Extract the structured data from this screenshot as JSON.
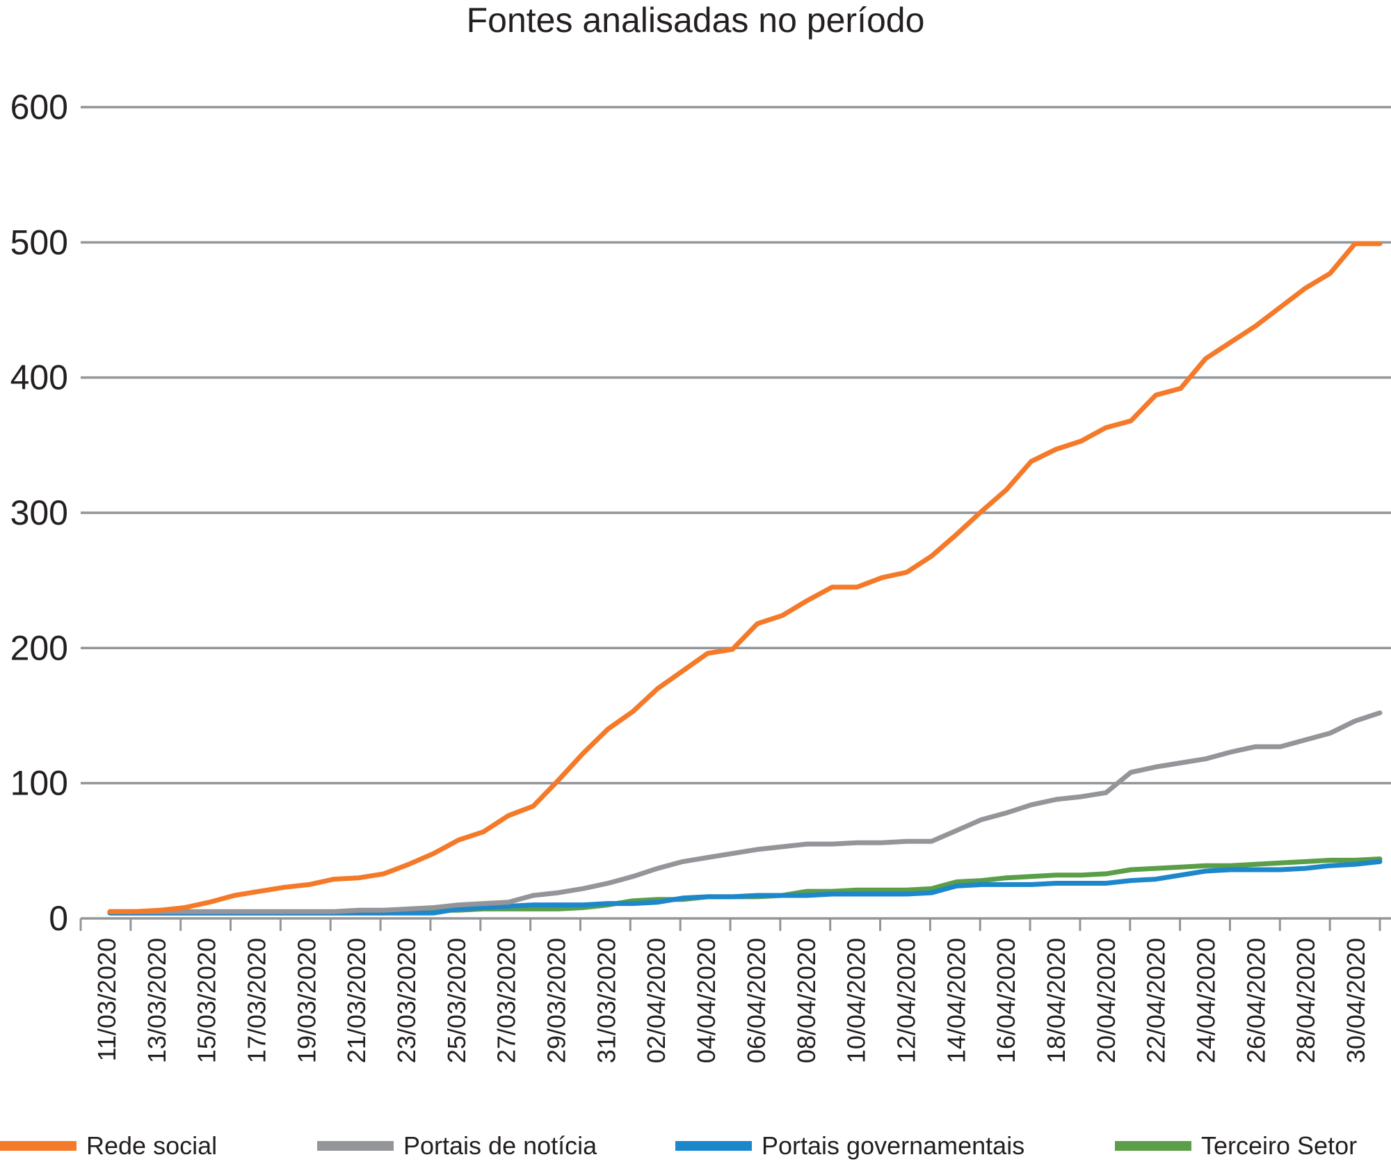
{
  "chart_data": {
    "type": "line",
    "title": "Fontes analisadas no período",
    "xlabel": "",
    "ylabel": "",
    "ylim": [
      0,
      600
    ],
    "yticks": [
      0,
      100,
      200,
      300,
      400,
      500,
      600
    ],
    "grid": true,
    "legend_position": "bottom",
    "x": [
      "11/03/2020",
      "12/03/2020",
      "13/03/2020",
      "14/03/2020",
      "15/03/2020",
      "16/03/2020",
      "17/03/2020",
      "18/03/2020",
      "19/03/2020",
      "20/03/2020",
      "21/03/2020",
      "22/03/2020",
      "23/03/2020",
      "24/03/2020",
      "25/03/2020",
      "26/03/2020",
      "27/03/2020",
      "28/03/2020",
      "29/03/2020",
      "30/03/2020",
      "31/03/2020",
      "01/04/2020",
      "02/04/2020",
      "03/04/2020",
      "04/04/2020",
      "05/04/2020",
      "06/04/2020",
      "07/04/2020",
      "08/04/2020",
      "09/04/2020",
      "10/04/2020",
      "11/04/2020",
      "12/04/2020",
      "13/04/2020",
      "14/04/2020",
      "15/04/2020",
      "16/04/2020",
      "17/04/2020",
      "18/04/2020",
      "19/04/2020",
      "20/04/2020",
      "21/04/2020",
      "22/04/2020",
      "23/04/2020",
      "24/04/2020",
      "25/04/2020",
      "26/04/2020",
      "27/04/2020",
      "28/04/2020",
      "29/04/2020",
      "30/04/2020",
      "01/05/2020"
    ],
    "x_tick_labels": [
      "11/03/2020",
      "13/03/2020",
      "15/03/2020",
      "17/03/2020",
      "19/03/2020",
      "21/03/2020",
      "23/03/2020",
      "25/03/2020",
      "27/03/2020",
      "29/03/2020",
      "31/03/2020",
      "02/04/2020",
      "04/04/2020",
      "06/04/2020",
      "08/04/2020",
      "10/04/2020",
      "12/04/2020",
      "14/04/2020",
      "16/04/2020",
      "18/04/2020",
      "20/04/2020",
      "22/04/2020",
      "24/04/2020",
      "26/04/2020",
      "28/04/2020",
      "30/04/2020"
    ],
    "series": [
      {
        "name": "Rede social",
        "color": "#f47a2a",
        "values": [
          5,
          5,
          6,
          8,
          12,
          17,
          20,
          23,
          25,
          29,
          30,
          33,
          40,
          48,
          58,
          64,
          76,
          83,
          102,
          122,
          140,
          153,
          170,
          183,
          196,
          199,
          218,
          224,
          235,
          245,
          245,
          252,
          256,
          268,
          284,
          301,
          317,
          338,
          347,
          353,
          363,
          368,
          387,
          392,
          414,
          426,
          438,
          452,
          466,
          477,
          499,
          499
        ]
      },
      {
        "name": "Portais de notícia",
        "color": "#939598",
        "values": [
          5,
          5,
          5,
          5,
          5,
          5,
          5,
          5,
          5,
          5,
          6,
          6,
          7,
          8,
          10,
          11,
          12,
          17,
          19,
          22,
          26,
          31,
          37,
          42,
          45,
          48,
          51,
          53,
          55,
          55,
          56,
          56,
          57,
          57,
          65,
          73,
          78,
          84,
          88,
          90,
          93,
          108,
          112,
          115,
          118,
          123,
          127,
          127,
          132,
          137,
          146,
          152
        ]
      },
      {
        "name": "Portais governamentais",
        "color": "#1d87cc",
        "values": [
          4,
          4,
          4,
          4,
          4,
          4,
          4,
          4,
          4,
          4,
          4,
          4,
          4,
          4,
          7,
          8,
          9,
          10,
          10,
          10,
          11,
          11,
          12,
          15,
          16,
          16,
          17,
          17,
          17,
          18,
          18,
          18,
          18,
          19,
          24,
          25,
          25,
          25,
          26,
          26,
          26,
          28,
          29,
          32,
          35,
          36,
          36,
          36,
          37,
          39,
          40,
          42
        ]
      },
      {
        "name": "Terceiro Setor",
        "color": "#5a9e48",
        "values": [
          4,
          4,
          4,
          4,
          4,
          4,
          4,
          4,
          4,
          4,
          4,
          4,
          5,
          6,
          6,
          7,
          7,
          7,
          7,
          8,
          10,
          13,
          14,
          14,
          16,
          16,
          16,
          17,
          20,
          20,
          21,
          21,
          21,
          22,
          27,
          28,
          30,
          31,
          32,
          32,
          33,
          36,
          37,
          38,
          39,
          39,
          40,
          41,
          42,
          43,
          43,
          44
        ]
      }
    ]
  }
}
